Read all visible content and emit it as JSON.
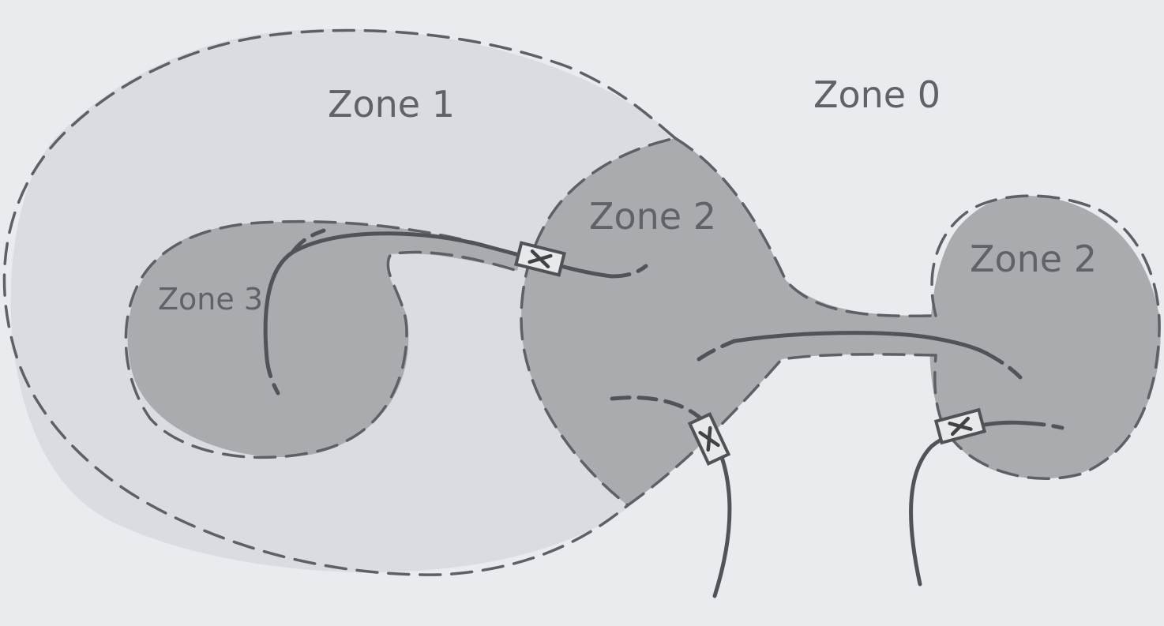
{
  "colors": {
    "background": "#e9ecef",
    "zone1_fill": "#d9dde1",
    "zone_shaded_fill": "#a9acaf",
    "boundary_stroke": "#5d6064",
    "label_text": "#5f6368"
  },
  "zones": {
    "zone0_label": "Zone 0",
    "zone1_label": "Zone 1",
    "zone2_left_label": "Zone 2",
    "zone2_right_label": "Zone 2",
    "zone3_label": "Zone 3"
  },
  "valves": {
    "glyph": "X",
    "count": 3
  }
}
